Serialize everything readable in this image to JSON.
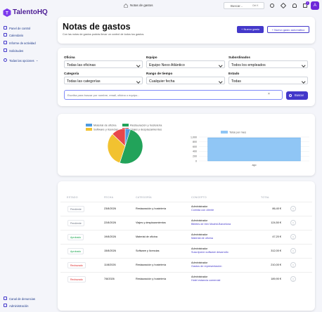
{
  "header": {
    "brand": "TalentoHQ",
    "breadcrumb": "Notas de gastos",
    "search_placeholder": "Buscar...",
    "search_shortcut": "Ctrl K",
    "notifications": "1",
    "avatar": "A"
  },
  "sidebar": {
    "items": [
      "Panel de control",
      "Calendario",
      "Informe de actividad",
      "Solicitudes"
    ],
    "more": "Todas las opciones",
    "footer": [
      "Canal de denuncias",
      "Administración"
    ]
  },
  "page": {
    "title": "Notas de gastos",
    "subtitle": "Con las notas de gastos podrás llevar un control de todos tus gastos.",
    "buttons": [
      "Nuevo gasto",
      "Nuevo gasto automático"
    ]
  },
  "filters": {
    "fields": [
      {
        "label": "Oficina",
        "value": "Todas las oficinas"
      },
      {
        "label": "Equipo",
        "value": "Equipo Nexo Atlántico"
      },
      {
        "label": "Subordinados",
        "value": "Todos los empleados"
      },
      {
        "label": "Categoría",
        "value": "Todas las categorías"
      },
      {
        "label": "Rango de tiempo",
        "value": "Cualquier fecha"
      },
      {
        "label": "Estado",
        "value": "Todas"
      }
    ],
    "search_placeholder": "Escriba para buscar por nombre, email, oficina o equipo...",
    "button": "Buscar"
  },
  "charts": [
    {
      "type": "pie",
      "categories": [
        "Material de oficina",
        "Restauración y hostelería",
        "Software y licencias",
        "Viajes y desplazamientos"
      ],
      "values": [
        47.2,
        486.3,
        312,
        124.5
      ],
      "colors": [
        "#4e9be0",
        "#22a35a",
        "#f2c230",
        "#e8474b"
      ]
    },
    {
      "type": "bar",
      "categories": [
        "ago"
      ],
      "series": [
        {
          "name": "Total por mes",
          "color": "#90c6f5",
          "values": [
            970
          ]
        }
      ],
      "ylim": [
        0,
        1000
      ],
      "yticks": [
        0,
        200,
        400,
        600,
        800,
        {
          "value": 1000,
          "label": "1,000"
        }
      ],
      "grid": true
    }
  ],
  "table": {
    "columns": [
      "ESTADO",
      "FECHA",
      "CATEGORÍA",
      "CONCEPTO",
      "TOTAL"
    ],
    "rows": [
      {
        "status": "Pendiente",
        "status_color": "#6b7280",
        "date": "23/8/2026",
        "category": "Restauración y hostelería",
        "user": "Administrador",
        "concept": "Comida con cliente",
        "total": "86,40 €"
      },
      {
        "status": "Pendiente",
        "status_color": "#6b7280",
        "date": "22/8/2026",
        "category": "Viajes y desplazamientos",
        "user": "Administrador",
        "concept": "Billetes de tren Madrid-Barcelona",
        "total": "124,50 €"
      },
      {
        "status": "Aprobado",
        "status_color": "#16a34a",
        "date": "19/8/2026",
        "category": "Material de oficina",
        "user": "Administrador",
        "concept": "Material de oficina",
        "total": "47,20 €"
      },
      {
        "status": "Aprobado",
        "status_color": "#16a34a",
        "date": "15/8/2026",
        "category": "Software y licencias",
        "user": "Administrador",
        "concept": "Suscripción software desarrollo",
        "total": "312,00 €"
      },
      {
        "status": "Rechazado",
        "status_color": "#dc2626",
        "date": "11/8/2026",
        "category": "Restauración y hostelería",
        "user": "Administrador",
        "concept": "Gastos de representación",
        "total": "210,00 €"
      },
      {
        "status": "Rechazado",
        "status_color": "#dc2626",
        "date": "7/8/2026",
        "category": "Restauración y hostelería",
        "user": "Administrador",
        "concept": "Hotel estancia comercial",
        "total": "189,90 €"
      }
    ]
  }
}
